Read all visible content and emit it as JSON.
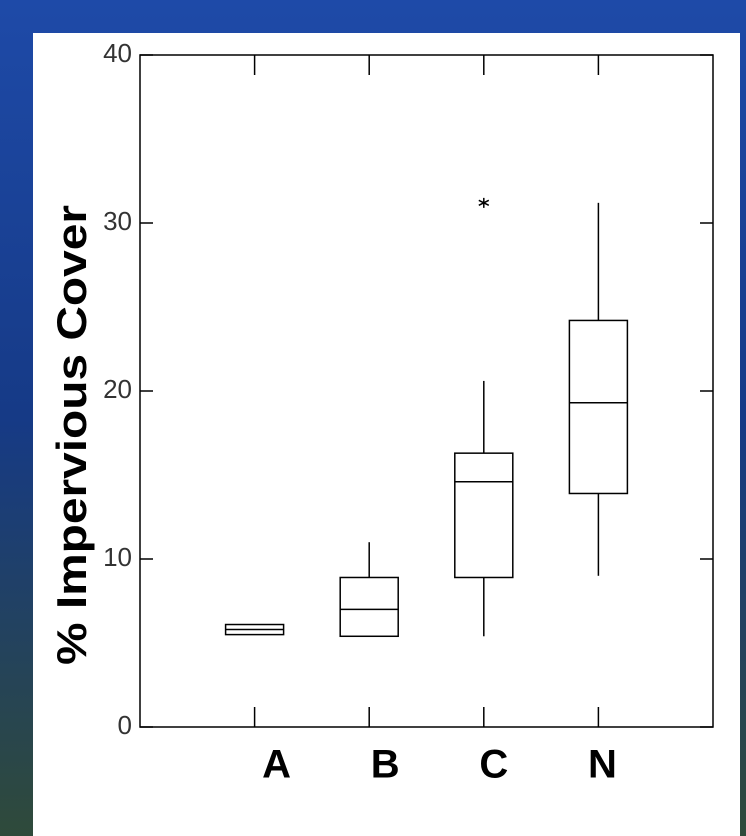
{
  "chart_data": {
    "type": "box",
    "y_label": "% Impervious Cover",
    "categories": [
      "A",
      "B",
      "C",
      "N"
    ],
    "boxes": [
      {
        "min": 5.5,
        "q1": 5.5,
        "median": 5.8,
        "q3": 6.1,
        "max": 6.1,
        "outliers": []
      },
      {
        "min": 5.4,
        "q1": 5.4,
        "median": 7.0,
        "q3": 8.9,
        "max": 11.0,
        "outliers": []
      },
      {
        "min": 5.4,
        "q1": 8.9,
        "median": 14.6,
        "q3": 16.3,
        "max": 20.6,
        "outliers": [
          31.2
        ]
      },
      {
        "min": 9.0,
        "q1": 13.9,
        "median": 19.3,
        "q3": 24.2,
        "max": 31.2,
        "outliers": []
      }
    ],
    "ylim": [
      0,
      40
    ],
    "yticks": [
      0,
      10,
      20,
      30,
      40
    ],
    "color": "#000000"
  }
}
